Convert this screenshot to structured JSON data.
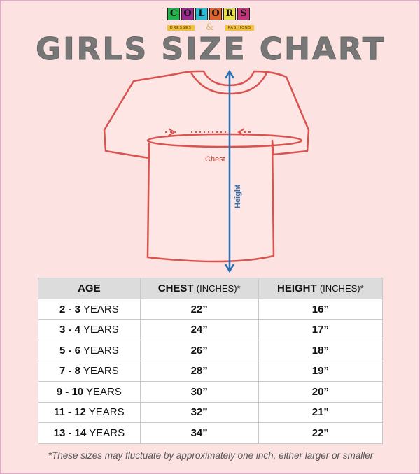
{
  "logo": {
    "letters": [
      "C",
      "O",
      "L",
      "O",
      "R",
      "S"
    ],
    "colors": [
      "#22b24c",
      "#9b2a8f",
      "#2bbad0",
      "#e0642a",
      "#e8e04a",
      "#c2357a"
    ],
    "left": "DRESSES",
    "amp": "&",
    "right": "FASHIONS"
  },
  "title": "GIRLS SIZE CHART",
  "diagram": {
    "chest_label": "Chest",
    "height_label": "Height",
    "outline_color": "#d9534f",
    "arrow_color": "#2c6fb3"
  },
  "table": {
    "headers": [
      {
        "main": "AGE",
        "unit": ""
      },
      {
        "main": "CHEST",
        "unit": "(INCHES)*"
      },
      {
        "main": "HEIGHT",
        "unit": "(INCHES)*"
      }
    ],
    "rows": [
      {
        "age": "2 - 3",
        "unit": "YEARS",
        "chest": "22”",
        "height": "16”"
      },
      {
        "age": "3 - 4",
        "unit": "YEARS",
        "chest": "24”",
        "height": "17”"
      },
      {
        "age": "5 - 6",
        "unit": "YEARS",
        "chest": "26”",
        "height": "18”"
      },
      {
        "age": "7 - 8",
        "unit": "YEARS",
        "chest": "28”",
        "height": "19”"
      },
      {
        "age": "9 - 10",
        "unit": "YEARS",
        "chest": "30”",
        "height": "20”"
      },
      {
        "age": "11 - 12",
        "unit": "YEARS",
        "chest": "32”",
        "height": "21”"
      },
      {
        "age": "13 - 14",
        "unit": "YEARS",
        "chest": "34”",
        "height": "22”"
      }
    ]
  },
  "footnote": "*These sizes may fluctuate by approximately one inch, either larger or smaller"
}
